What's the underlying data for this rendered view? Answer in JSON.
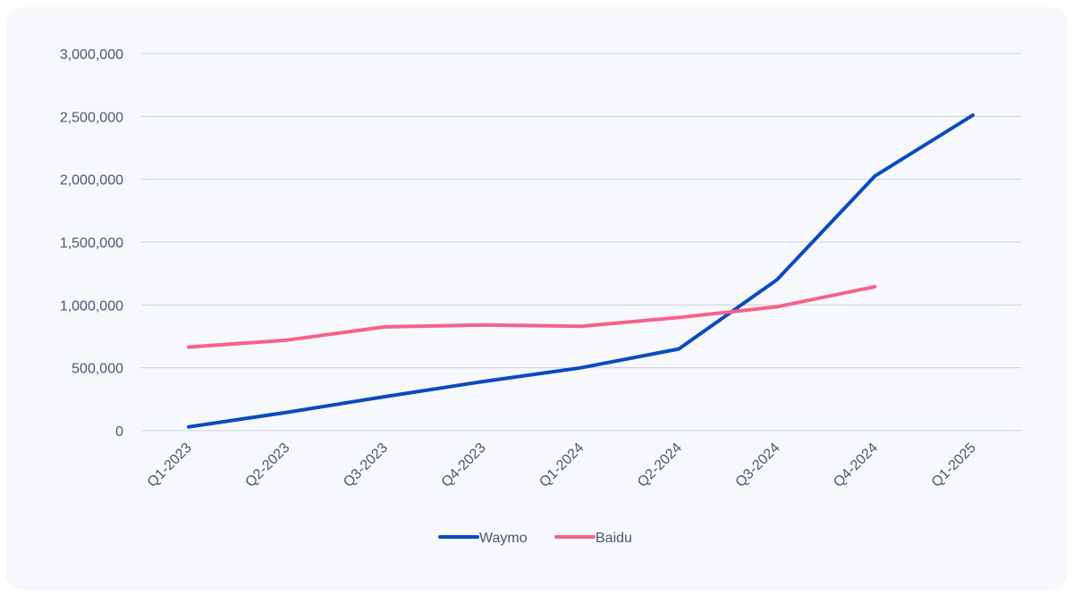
{
  "chart_data": {
    "type": "line",
    "title": "",
    "xlabel": "",
    "ylabel": "",
    "categories": [
      "Q1-2023",
      "Q2-2023",
      "Q3-2023",
      "Q4-2023",
      "Q1-2024",
      "Q2-2024",
      "Q3-2024",
      "Q4-2024",
      "Q1-2025"
    ],
    "yticks": [
      0,
      500000,
      1000000,
      1500000,
      2000000,
      2500000,
      3000000
    ],
    "ytick_labels": [
      "0",
      "500,000",
      "1,000,000",
      "1,500,000",
      "2,000,000",
      "2,500,000",
      "3,000,000"
    ],
    "ylim": [
      0,
      3000000
    ],
    "grid": true,
    "legend_position": "bottom-center",
    "series": [
      {
        "name": "Waymo",
        "color": "#0a4bbf",
        "values": [
          30000,
          145000,
          270000,
          390000,
          500000,
          650000,
          1200000,
          2025000,
          2510000
        ]
      },
      {
        "name": "Baidu",
        "color": "#f7628a",
        "values": [
          665000,
          720000,
          825000,
          840000,
          830000,
          900000,
          985000,
          1145000,
          null
        ]
      }
    ]
  }
}
